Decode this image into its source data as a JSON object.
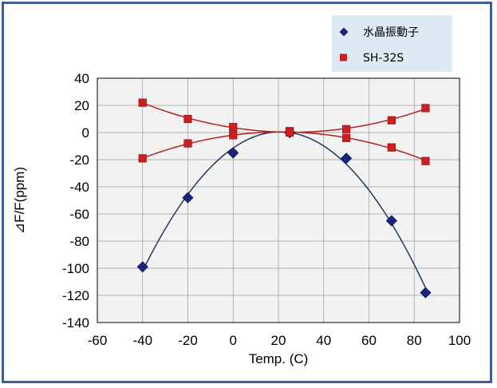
{
  "chart_data": {
    "type": "scatter",
    "xlabel": "Temp. (C)",
    "ylabel": "⊿F/F(ppm)",
    "xlim": [
      -60,
      100
    ],
    "ylim": [
      -140,
      40
    ],
    "x_ticks": [
      -60,
      -40,
      -20,
      0,
      20,
      40,
      60,
      80,
      100
    ],
    "y_ticks": [
      40,
      20,
      0,
      -20,
      -40,
      -60,
      -80,
      -100,
      -120,
      -140
    ],
    "grid": true,
    "legend_position": "top-right",
    "series": [
      {
        "name": "水晶振動子",
        "marker": "diamond",
        "color": "#1a237e",
        "line_color": "#1f3a5f",
        "x": [
          -40,
          -20,
          0,
          25,
          50,
          70,
          85
        ],
        "y": [
          -99,
          -48,
          -15,
          0,
          -19,
          -65,
          -118
        ]
      },
      {
        "name": "SH-32S",
        "marker": "square",
        "color": "#cc1f1f",
        "line_color": "#b22222",
        "x": [
          -40,
          -20,
          0,
          25,
          50,
          70,
          85
        ],
        "y": [
          22,
          10,
          4,
          1,
          2.5,
          9,
          18
        ]
      },
      {
        "name": "",
        "marker": "square",
        "color": "#cc1f1f",
        "line_color": "#b22222",
        "x": [
          -40,
          -20,
          0,
          25,
          50,
          70,
          85
        ],
        "y": [
          -19,
          -8,
          -2,
          0,
          -4,
          -11,
          -21
        ]
      }
    ]
  },
  "colors": {
    "frame_border": "#3f5f8f",
    "plot_background": "#f2f2f2",
    "legend_background": "#dcebf3"
  }
}
